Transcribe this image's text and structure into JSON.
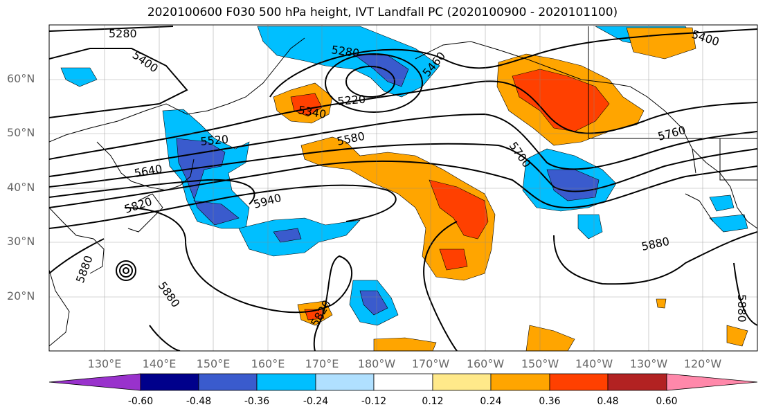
{
  "title": "2020100600 F030 500 hPa height, IVT Landfall PC (2020100900 - 2020101100)",
  "lat_labels": [
    "60°N",
    "50°N",
    "40°N",
    "30°N",
    "20°N"
  ],
  "lon_labels": [
    "130°E",
    "140°E",
    "150°E",
    "160°E",
    "170°E",
    "180°W",
    "170°W",
    "160°W",
    "150°W",
    "140°W",
    "130°W",
    "120°W"
  ],
  "contour_labels": [
    "5280",
    "5400",
    "5280",
    "5460",
    "5400",
    "5220",
    "5340",
    "5520",
    "5580",
    "5700",
    "5760",
    "5640",
    "5820",
    "5940",
    "5880",
    "5880",
    "5880",
    "5820",
    "5880"
  ],
  "colorbar": {
    "ticks": [
      "-0.60",
      "-0.48",
      "-0.36",
      "-0.24",
      "-0.12",
      "0.12",
      "0.24",
      "0.36",
      "0.48",
      "0.60"
    ],
    "colors": [
      "#9932cc",
      "#00008b",
      "#3a5bcd",
      "#00bfff",
      "#b0e0ff",
      "#ffffff",
      "#ffe98a",
      "#ffa500",
      "#ff4000",
      "#b22222",
      "#ff88aa"
    ]
  }
}
